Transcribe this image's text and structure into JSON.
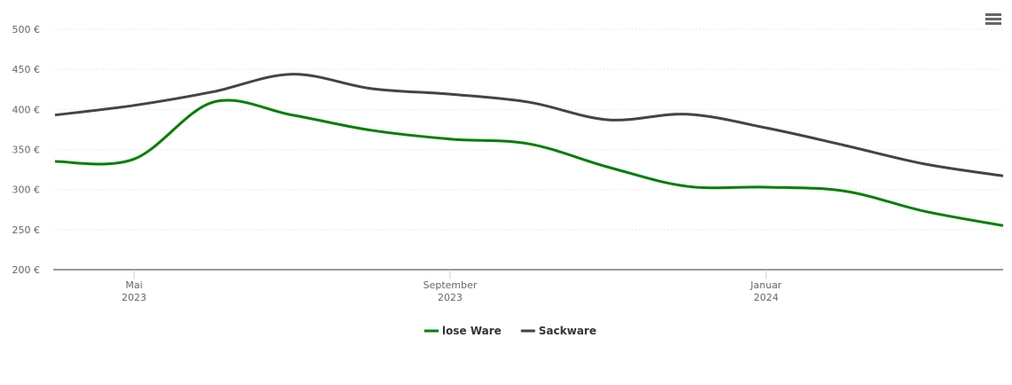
{
  "chart_data": {
    "type": "line",
    "x": [
      "2023-04",
      "2023-05",
      "2023-06",
      "2023-07",
      "2023-08",
      "2023-09",
      "2023-10",
      "2023-11",
      "2023-12",
      "2024-01",
      "2024-02",
      "2024-03",
      "2024-04"
    ],
    "xlim": [
      "2023-04",
      "2024-04"
    ],
    "xticks": [
      {
        "value": "2023-05",
        "label": "Mai 2023"
      },
      {
        "value": "2023-09",
        "label": "September 2023"
      },
      {
        "value": "2024-01",
        "label": "Januar 2024"
      }
    ],
    "ylim": [
      200,
      500
    ],
    "yticks": [
      {
        "value": 200,
        "label": "200 €"
      },
      {
        "value": 250,
        "label": "250 €"
      },
      {
        "value": 300,
        "label": "300 €"
      },
      {
        "value": 350,
        "label": "350 €"
      },
      {
        "value": 400,
        "label": "400 €"
      },
      {
        "value": 450,
        "label": "450 €"
      },
      {
        "value": 500,
        "label": "500 €"
      }
    ],
    "grid": true,
    "legend": "bottom",
    "series": [
      {
        "name": "lose Ware",
        "color": "#008000",
        "values": [
          335,
          338,
          409,
          393,
          374,
          363,
          357,
          328,
          304,
          303,
          298,
          273,
          255
        ]
      },
      {
        "name": "Sackware",
        "color": "#434348",
        "values": [
          393,
          405,
          422,
          444,
          426,
          419,
          409,
          387,
          394,
          377,
          355,
          332,
          317
        ]
      }
    ]
  }
}
